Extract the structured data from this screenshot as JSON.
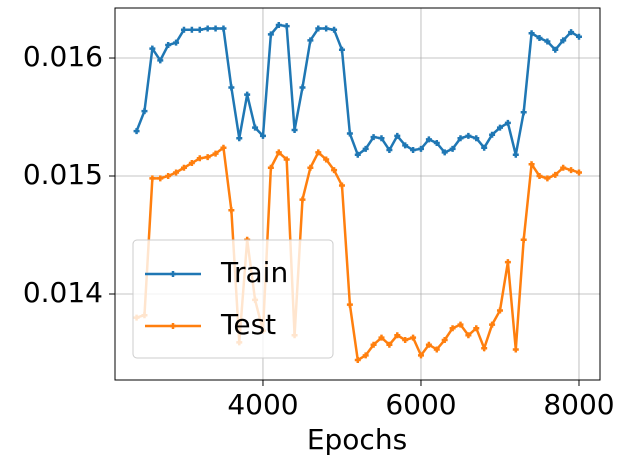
{
  "chart_data": {
    "type": "line",
    "x_label": "Epochs",
    "x": [
      2400,
      2500,
      2600,
      2700,
      2800,
      2900,
      3000,
      3100,
      3200,
      3300,
      3400,
      3500,
      3600,
      3700,
      3800,
      3900,
      4000,
      4100,
      4200,
      4300,
      4400,
      4500,
      4600,
      4700,
      4800,
      4900,
      5000,
      5100,
      5200,
      5300,
      5400,
      5500,
      5600,
      5700,
      5800,
      5900,
      6000,
      6100,
      6200,
      6300,
      6400,
      6500,
      6600,
      6700,
      6800,
      6900,
      7000,
      7100,
      7200,
      7300,
      7400,
      7500,
      7600,
      7700,
      7800,
      7900,
      8000
    ],
    "series": [
      {
        "name": "Train",
        "color": "#1f77b4",
        "values": [
          0.01538,
          0.01555,
          0.01608,
          0.01598,
          0.01611,
          0.01613,
          0.01624,
          0.01624,
          0.01624,
          0.01625,
          0.01625,
          0.01625,
          0.01575,
          0.01532,
          0.01569,
          0.01541,
          0.01534,
          0.0162,
          0.01628,
          0.01627,
          0.01539,
          0.01575,
          0.01615,
          0.01625,
          0.01625,
          0.01624,
          0.01607,
          0.01536,
          0.01518,
          0.01523,
          0.01533,
          0.01532,
          0.01522,
          0.01534,
          0.01526,
          0.01522,
          0.01523,
          0.01531,
          0.01528,
          0.0152,
          0.01523,
          0.01532,
          0.01534,
          0.01532,
          0.01524,
          0.01535,
          0.01541,
          0.01545,
          0.01518,
          0.01554,
          0.01621,
          0.01617,
          0.01614,
          0.01607,
          0.01615,
          0.01622,
          0.01618
        ]
      },
      {
        "name": "Test",
        "color": "#ff7f0e",
        "values": [
          0.0138,
          0.01382,
          0.01498,
          0.01498,
          0.015,
          0.01503,
          0.01507,
          0.01511,
          0.01515,
          0.01516,
          0.01519,
          0.01524,
          0.01471,
          0.01359,
          0.01446,
          0.01395,
          0.01369,
          0.01507,
          0.0152,
          0.01514,
          0.01365,
          0.0148,
          0.01507,
          0.0152,
          0.01514,
          0.01505,
          0.01492,
          0.01391,
          0.01344,
          0.01348,
          0.01357,
          0.01363,
          0.01357,
          0.01365,
          0.01361,
          0.01363,
          0.01348,
          0.01357,
          0.01353,
          0.01361,
          0.01371,
          0.01374,
          0.01365,
          0.01371,
          0.01354,
          0.01374,
          0.01386,
          0.01427,
          0.01353,
          0.01446,
          0.0151,
          0.015,
          0.01498,
          0.01501,
          0.01507,
          0.01505,
          0.01503
        ]
      }
    ],
    "xlim": [
      2127,
      8266
    ],
    "xticks": [
      4000,
      6000,
      8000
    ],
    "ylim": [
      0.013271,
      0.016424
    ],
    "yticks": [
      0.014,
      0.015,
      0.016
    ],
    "grid": true,
    "legend": "lower left"
  }
}
